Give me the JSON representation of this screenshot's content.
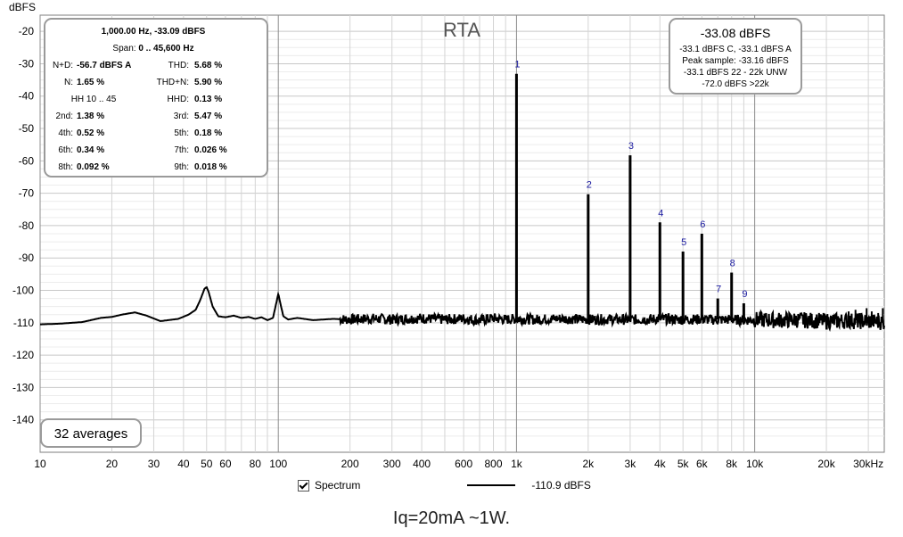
{
  "chart_data": {
    "type": "line",
    "title": "RTA",
    "ylabel": "dBFS",
    "xunit": "kHz",
    "xscale": "log",
    "xlim": [
      10,
      35000
    ],
    "ylim": [
      -150,
      -15
    ],
    "yticks": [
      -20,
      -30,
      -40,
      -50,
      -60,
      -70,
      -80,
      -90,
      -100,
      -110,
      -120,
      -130,
      -140
    ],
    "xticks": [
      {
        "v": 10,
        "l": "10"
      },
      {
        "v": 20,
        "l": "20"
      },
      {
        "v": 30,
        "l": "30"
      },
      {
        "v": 40,
        "l": "40"
      },
      {
        "v": 50,
        "l": "50"
      },
      {
        "v": 60,
        "l": "60"
      },
      {
        "v": 80,
        "l": "80"
      },
      {
        "v": 100,
        "l": "100"
      },
      {
        "v": 200,
        "l": "200"
      },
      {
        "v": 300,
        "l": "300"
      },
      {
        "v": 400,
        "l": "400"
      },
      {
        "v": 600,
        "l": "600"
      },
      {
        "v": 800,
        "l": "800"
      },
      {
        "v": 1000,
        "l": "1k"
      },
      {
        "v": 2000,
        "l": "2k"
      },
      {
        "v": 3000,
        "l": "3k"
      },
      {
        "v": 4000,
        "l": "4k"
      },
      {
        "v": 5000,
        "l": "5k"
      },
      {
        "v": 6000,
        "l": "6k"
      },
      {
        "v": 8000,
        "l": "8k"
      },
      {
        "v": 10000,
        "l": "10k"
      },
      {
        "v": 20000,
        "l": "20k"
      },
      {
        "v": 30000,
        "l": "30kHz"
      }
    ],
    "grid": true,
    "series": [
      {
        "name": "Spectrum",
        "legend_value": "-110.9 dBFS",
        "color": "#000000",
        "x": [
          10,
          12,
          15,
          18,
          20,
          22,
          25,
          28,
          32,
          38,
          42,
          45,
          47,
          49,
          50,
          51,
          53,
          56,
          60,
          65,
          70,
          75,
          80,
          85,
          90,
          95,
          98,
          100,
          102,
          105,
          110,
          120,
          140,
          170,
          200,
          250,
          300,
          400,
          500,
          600,
          700,
          800,
          900,
          1000,
          1200,
          1500,
          2000,
          2500,
          3000,
          4000,
          5000,
          6000,
          7000,
          8000,
          9000,
          10000,
          12000,
          15000,
          20000,
          25000,
          30000,
          35000
        ],
        "y": [
          -110.5,
          -110.3,
          -109.8,
          -108.5,
          -108.2,
          -107.5,
          -106.8,
          -107.8,
          -109.5,
          -108.8,
          -107.5,
          -106,
          -103,
          -99.5,
          -99,
          -100.5,
          -105,
          -108,
          -108.3,
          -107.8,
          -108.5,
          -108.2,
          -108.8,
          -108.3,
          -109.2,
          -108.5,
          -104,
          -101,
          -104,
          -108,
          -109,
          -108.5,
          -109.2,
          -108.8,
          -109,
          -108.7,
          -109,
          -108.6,
          -109,
          -108.7,
          -109.2,
          -108.6,
          -109,
          -108.8,
          -109,
          -108.7,
          -109,
          -108.9,
          -109.1,
          -108.8,
          -109,
          -108.9,
          -109.1,
          -109,
          -109.2,
          -109,
          -109.2,
          -109.1,
          -109.5,
          -109.4,
          -109.6,
          -109.8
        ]
      }
    ],
    "harmonics": [
      {
        "label": "1",
        "f": 1000,
        "db": -33.1
      },
      {
        "label": "2",
        "f": 2000,
        "db": -70.3
      },
      {
        "label": "3",
        "f": 3000,
        "db": -58.3
      },
      {
        "label": "4",
        "f": 4000,
        "db": -79.0
      },
      {
        "label": "5",
        "f": 5000,
        "db": -88.0
      },
      {
        "label": "6",
        "f": 6000,
        "db": -82.5
      },
      {
        "label": "7",
        "f": 7000,
        "db": -102.5
      },
      {
        "label": "8",
        "f": 8000,
        "db": -94.5
      },
      {
        "label": "9",
        "f": 9000,
        "db": -104.0
      }
    ],
    "stats": {
      "header": "1,000.00 Hz, -33.09 dBFS",
      "span_label": "Span:",
      "span_value": "0 .. 45,600 Hz",
      "rows": [
        [
          {
            "k": "N+D:",
            "v": "-56.7 dBFS A"
          },
          {
            "k": "THD:",
            "v": "5.68 %"
          }
        ],
        [
          {
            "k": "N:",
            "v": "1.65 %"
          },
          {
            "k": "THD+N:",
            "v": "5.90 %"
          }
        ],
        [
          {
            "k": "HH 10 .. 45",
            "v": ""
          },
          {
            "k": "HHD:",
            "v": "0.13 %"
          }
        ],
        [
          {
            "k": "2nd:",
            "v": "1.38 %"
          },
          {
            "k": "3rd:",
            "v": "5.47 %"
          }
        ],
        [
          {
            "k": "4th:",
            "v": "0.52 %"
          },
          {
            "k": "5th:",
            "v": "0.18 %"
          }
        ],
        [
          {
            "k": "6th:",
            "v": "0.34 %"
          },
          {
            "k": "7th:",
            "v": "0.026 %"
          }
        ],
        [
          {
            "k": "8th:",
            "v": "0.092 %"
          },
          {
            "k": "9th:",
            "v": "0.018 %"
          }
        ]
      ]
    },
    "level": {
      "main": "-33.08 dBFS",
      "lines": [
        "-33.1 dBFS C, -33.1 dBFS A",
        "Peak sample: -33.16 dBFS",
        "-33.1 dBFS 22 - 22k UNW",
        "-72.0 dBFS >22k"
      ]
    },
    "averages": "32 averages"
  },
  "legend": {
    "series_label": "Spectrum",
    "value": "-110.9 dBFS"
  },
  "caption": "Iq=20mA ~1W."
}
